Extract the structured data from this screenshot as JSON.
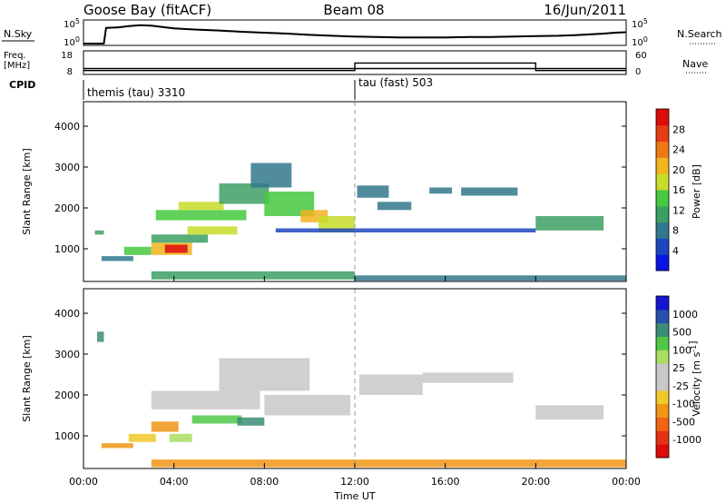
{
  "header": {
    "station": "Goose Bay (fitACF)",
    "beam": "Beam 08",
    "date": "16/Jun/2011"
  },
  "chart_data": [
    {
      "type": "line",
      "panel": "noise",
      "left_label": "N.Sky",
      "right_label": "N.Search",
      "left_ticks": [
        "10^5",
        "10^0"
      ],
      "right_ticks": [
        "10^5",
        "10^0"
      ],
      "ylim_log10": [
        0,
        5
      ],
      "x": [
        0,
        0.5,
        0.9,
        1.0,
        1.5,
        2,
        2.5,
        3,
        3.5,
        4,
        5,
        6,
        7,
        8,
        9,
        10,
        11,
        12,
        13,
        14,
        15,
        16,
        17,
        18,
        19,
        20,
        21,
        22,
        23,
        23.5,
        24
      ],
      "sky": [
        0,
        0,
        0,
        3.6,
        3.7,
        4.0,
        4.2,
        4.1,
        3.8,
        3.5,
        3.2,
        3.0,
        2.7,
        2.5,
        2.3,
        2.0,
        1.8,
        1.6,
        1.5,
        1.4,
        1.4,
        1.4,
        1.5,
        1.5,
        1.6,
        1.7,
        1.8,
        2.0,
        2.3,
        2.5,
        2.6
      ],
      "search": [
        0,
        0,
        0,
        3.5,
        3.6,
        3.9,
        4.1,
        4.0,
        3.7,
        3.4,
        3.1,
        2.9,
        2.6,
        2.4,
        2.2,
        1.9,
        1.7,
        1.5,
        1.4,
        1.3,
        1.3,
        1.3,
        1.4,
        1.4,
        1.5,
        1.6,
        1.7,
        1.9,
        2.2,
        2.4,
        2.5
      ]
    },
    {
      "type": "line",
      "panel": "frequency",
      "left_label_1": "Freq.",
      "left_label_2": "[MHz]",
      "right_label": "Nave",
      "left_ticks": [
        "18",
        "8"
      ],
      "right_ticks": [
        "60",
        "0"
      ],
      "freq_mhz": 10.5,
      "freq_ylim": [
        8,
        18
      ],
      "nave_ylim": [
        0,
        60
      ],
      "nave_segments": [
        {
          "x0": 0,
          "x1": 12,
          "value": 10
        },
        {
          "x0": 12,
          "x1": 20,
          "value": 29
        },
        {
          "x0": 20,
          "x1": 24,
          "value": 10
        }
      ]
    },
    {
      "type": "table",
      "panel": "cpid",
      "label": "CPID",
      "modes": [
        {
          "name": "themis (tau) 3310",
          "start": 0,
          "end": 12
        },
        {
          "name": "tau (fast) 503",
          "start": 12,
          "end": 24
        }
      ]
    },
    {
      "type": "heatmap",
      "panel": "power",
      "ylabel": "Slant Range [km]",
      "yticks": [
        1000,
        2000,
        3000,
        4000
      ],
      "ylim": [
        200,
        4600
      ],
      "colorbar_label": "Power [dB]",
      "colorbar_ticks": [
        4,
        8,
        12,
        16,
        20,
        24,
        28
      ],
      "colorbar_colors": [
        "#0a14e6",
        "#1e46be",
        "#32788c",
        "#3ca064",
        "#46c840",
        "#c8dc28",
        "#f0b41e",
        "#f07814",
        "#e63c14",
        "#dc0a0a"
      ],
      "patches": [
        {
          "t0": 0.5,
          "t1": 0.9,
          "r0": 1350,
          "r1": 1450,
          "level": 3
        },
        {
          "t0": 0.8,
          "t1": 2.2,
          "r0": 700,
          "r1": 820,
          "level": 2
        },
        {
          "t0": 1.8,
          "t1": 3.0,
          "r0": 850,
          "r1": 1050,
          "level": 4
        },
        {
          "t0": 3.0,
          "t1": 4.8,
          "r0": 850,
          "r1": 1150,
          "level": 6
        },
        {
          "t0": 3.6,
          "t1": 4.6,
          "r0": 900,
          "r1": 1100,
          "level": 9
        },
        {
          "t0": 3.0,
          "t1": 5.5,
          "r0": 1150,
          "r1": 1350,
          "level": 3
        },
        {
          "t0": 4.6,
          "t1": 6.8,
          "r0": 1350,
          "r1": 1550,
          "level": 5
        },
        {
          "t0": 3.2,
          "t1": 7.2,
          "r0": 1700,
          "r1": 1950,
          "level": 4
        },
        {
          "t0": 4.2,
          "t1": 6.2,
          "r0": 1950,
          "r1": 2150,
          "level": 5
        },
        {
          "t0": 6.0,
          "t1": 8.2,
          "r0": 2100,
          "r1": 2600,
          "level": 3
        },
        {
          "t0": 7.4,
          "t1": 9.2,
          "r0": 2500,
          "r1": 3100,
          "level": 2
        },
        {
          "t0": 8.0,
          "t1": 10.2,
          "r0": 1800,
          "r1": 2400,
          "level": 4
        },
        {
          "t0": 9.6,
          "t1": 10.8,
          "r0": 1650,
          "r1": 1950,
          "level": 6
        },
        {
          "t0": 10.4,
          "t1": 12.0,
          "r0": 1400,
          "r1": 1800,
          "level": 5
        },
        {
          "t0": 12.1,
          "t1": 13.5,
          "r0": 2250,
          "r1": 2550,
          "level": 2
        },
        {
          "t0": 13.0,
          "t1": 14.5,
          "r0": 1950,
          "r1": 2150,
          "level": 2
        },
        {
          "t0": 15.3,
          "t1": 16.3,
          "r0": 2350,
          "r1": 2500,
          "level": 2
        },
        {
          "t0": 16.7,
          "t1": 19.2,
          "r0": 2300,
          "r1": 2500,
          "level": 2
        },
        {
          "t0": 20.0,
          "t1": 23.0,
          "r0": 1450,
          "r1": 1800,
          "level": 3
        },
        {
          "t0": 8.5,
          "t1": 20.0,
          "r0": 1400,
          "r1": 1500,
          "level": 1
        },
        {
          "t0": 3.0,
          "t1": 12.0,
          "r0": 250,
          "r1": 450,
          "level": 3
        },
        {
          "t0": 12.0,
          "t1": 24.0,
          "r0": 220,
          "r1": 350,
          "level": 2
        }
      ]
    },
    {
      "type": "heatmap",
      "panel": "velocity",
      "ylabel": "Slant Range [km]",
      "yticks": [
        1000,
        2000,
        3000,
        4000
      ],
      "ylim": [
        200,
        4600
      ],
      "colorbar_label": "Velocity [m s^-1]",
      "colorbar_ticks": [
        "1000",
        "500",
        "100",
        "25",
        "-25",
        "-100",
        "-500",
        "-1000"
      ],
      "colorbar_colors": [
        "#1414d2",
        "#2850aa",
        "#3c8c78",
        "#50c846",
        "#aadc64",
        "#c8c8c8",
        "#c8c8c8",
        "#f0c828",
        "#f09614",
        "#f06414",
        "#e63214",
        "#dc0a0a"
      ],
      "patches": [
        {
          "t0": 0.6,
          "t1": 0.9,
          "r0": 3300,
          "r1": 3550,
          "level": 9
        },
        {
          "t0": 0.8,
          "t1": 2.2,
          "r0": 700,
          "r1": 820,
          "level": 3
        },
        {
          "t0": 2.0,
          "t1": 3.2,
          "r0": 850,
          "r1": 1050,
          "level": 4
        },
        {
          "t0": 3.0,
          "t1": 4.2,
          "r0": 1100,
          "r1": 1350,
          "level": 3
        },
        {
          "t0": 3.8,
          "t1": 4.8,
          "r0": 850,
          "r1": 1050,
          "level": 7
        },
        {
          "t0": 4.8,
          "t1": 7.0,
          "r0": 1300,
          "r1": 1500,
          "level": 8
        },
        {
          "t0": 6.8,
          "t1": 8.0,
          "r0": 1250,
          "r1": 1450,
          "level": 9
        },
        {
          "t0": 3.0,
          "t1": 7.8,
          "r0": 1650,
          "r1": 2100,
          "level": 5
        },
        {
          "t0": 6.0,
          "t1": 10.0,
          "r0": 2100,
          "r1": 2900,
          "level": 5
        },
        {
          "t0": 8.0,
          "t1": 11.8,
          "r0": 1500,
          "r1": 2000,
          "level": 5
        },
        {
          "t0": 12.2,
          "t1": 15.0,
          "r0": 2000,
          "r1": 2500,
          "level": 5
        },
        {
          "t0": 15.0,
          "t1": 19.0,
          "r0": 2300,
          "r1": 2550,
          "level": 6
        },
        {
          "t0": 20.0,
          "t1": 23.0,
          "r0": 1400,
          "r1": 1750,
          "level": 5
        },
        {
          "t0": 3.0,
          "t1": 24.0,
          "r0": 230,
          "r1": 420,
          "level": 3
        }
      ]
    }
  ],
  "xaxis": {
    "label": "Time UT",
    "ticks": [
      "00:00",
      "04:00",
      "08:00",
      "12:00",
      "16:00",
      "20:00",
      "00:00"
    ],
    "xlim": [
      0,
      24
    ]
  }
}
